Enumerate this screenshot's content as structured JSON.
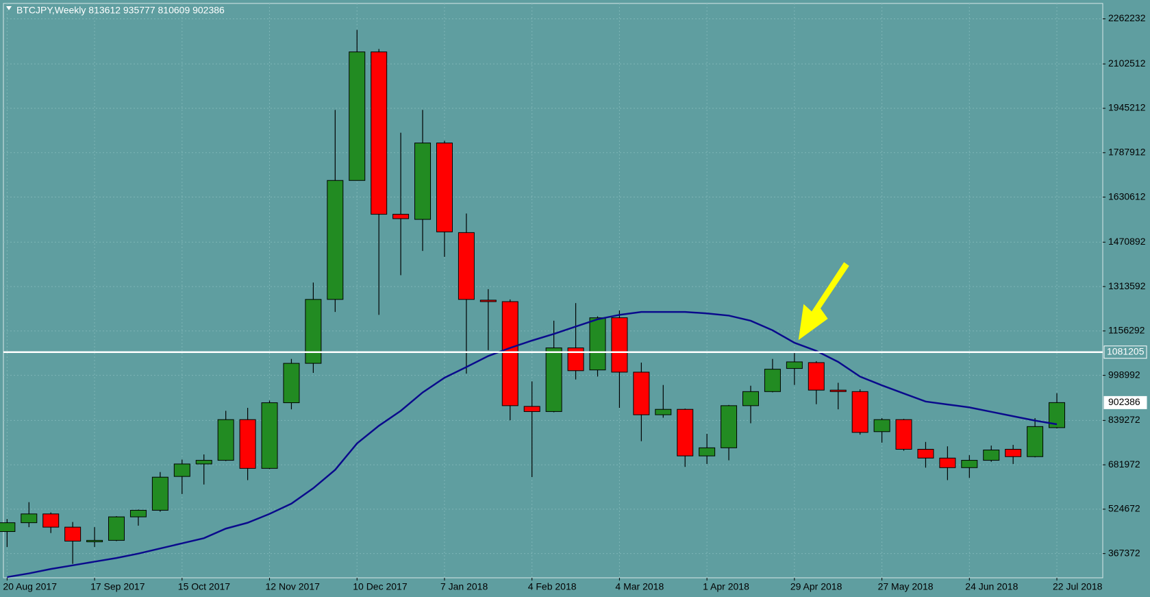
{
  "chart_data": {
    "type": "candlestick",
    "title": "BTCJPY,Weekly  813612 935777 810609 902386",
    "categories": [
      "20 Aug 2017",
      null,
      null,
      null,
      "17 Sep 2017",
      null,
      null,
      null,
      "15 Oct 2017",
      null,
      null,
      null,
      "12 Nov 2017",
      null,
      null,
      null,
      "10 Dec 2017",
      null,
      null,
      null,
      "7 Jan 2018",
      null,
      null,
      null,
      "4 Feb 2018",
      null,
      null,
      null,
      "4 Mar 2018",
      null,
      null,
      null,
      "1 Apr 2018",
      null,
      null,
      null,
      "29 Apr 2018",
      null,
      null,
      null,
      "27 May 2018",
      null,
      null,
      null,
      "24 Jun 2018",
      null,
      null,
      null,
      "22 Jul 2018"
    ],
    "open": [
      445400,
      476700,
      507900,
      461000,
      409000,
      414200,
      497500,
      520900,
      640700,
      684900,
      697900,
      842100,
      669300,
      901900,
      1041500,
      1268000,
      1689600,
      2145100,
      1569800,
      1551600,
      1822300,
      1504800,
      1265400,
      1260200,
      888900,
      870700,
      1096200,
      1018100,
      1203000,
      1010300,
      859300,
      878500,
      713500,
      742200,
      891500,
      941400,
      1023300,
      1044100,
      946600,
      941400,
      799400,
      842100,
      737000,
      705800,
      671900,
      697900,
      737000,
      710900,
      813612
    ],
    "high": [
      489700,
      549500,
      513100,
      479300,
      461000,
      500100,
      523500,
      656300,
      700500,
      718700,
      873300,
      883700,
      909700,
      1057100,
      1327800,
      1939500,
      2223200,
      2155500,
      1858800,
      1939500,
      1830200,
      1572500,
      1304400,
      1268000,
      977800,
      1192500,
      1255000,
      1208100,
      1228900,
      1044100,
      964800,
      881100,
      791600,
      894100,
      962200,
      1057100,
      1078000,
      1049300,
      972600,
      949200,
      847300,
      844700,
      763000,
      747400,
      716100,
      750000,
      752600,
      847300,
      935777
    ],
    "low": [
      390800,
      461000,
      440200,
      330900,
      390800,
      411600,
      466300,
      515700,
      578200,
      612100,
      695300,
      627700,
      666800,
      878500,
      1007700,
      1223700,
      1689600,
      1213300,
      1353800,
      1439700,
      1418900,
      1005100,
      1088300,
      839500,
      638100,
      868100,
      984300,
      994700,
      883700,
      765600,
      848900,
      674500,
      684900,
      697900,
      829100,
      938800,
      964800,
      896700,
      878500,
      789000,
      760400,
      731800,
      671900,
      627700,
      635500,
      692700,
      684900,
      708400,
      810609
    ],
    "close": [
      476700,
      507900,
      461000,
      411600,
      414200,
      497500,
      520900,
      638100,
      684900,
      697900,
      842100,
      669300,
      901900,
      1041500,
      1268000,
      1689600,
      2145100,
      1569800,
      1554200,
      1822300,
      1507400,
      1268000,
      1260200,
      891500,
      870700,
      1096200,
      1015500,
      1202900,
      1010300,
      859300,
      878500,
      713500,
      742200,
      891500,
      941400,
      1020700,
      1046700,
      946600,
      941400,
      796800,
      842100,
      737000,
      705800,
      671900,
      697900,
      734400,
      710900,
      817500,
      902386
    ],
    "ma_values": [
      284100,
      297100,
      312700,
      325700,
      338700,
      351700,
      367300,
      385500,
      403700,
      421900,
      455800,
      476700,
      507900,
      544300,
      599000,
      664100,
      757800,
      820300,
      873300,
      938300,
      990400,
      1028500,
      1067500,
      1096200,
      1122200,
      1145600,
      1171700,
      1197700,
      1213300,
      1223700,
      1223700,
      1223700,
      1218500,
      1210700,
      1192500,
      1158600,
      1114400,
      1085800,
      1046700,
      994700,
      963500,
      934800,
      906200,
      895800,
      885400,
      869800,
      854200,
      838600,
      825600
    ],
    "up_color": "#228b22",
    "down_color": "#ff0000",
    "ma_color": "#0a0a8c",
    "hline": 1081205,
    "hline_color": "#ffffff",
    "last_price": 902386,
    "ylim": [
      281500,
      2316900
    ],
    "yticks": [
      2262232,
      2102512,
      1945212,
      1787912,
      1630612,
      1470892,
      1313592,
      1156292,
      998992,
      839272,
      681972,
      524672,
      367372
    ],
    "grid": true
  }
}
